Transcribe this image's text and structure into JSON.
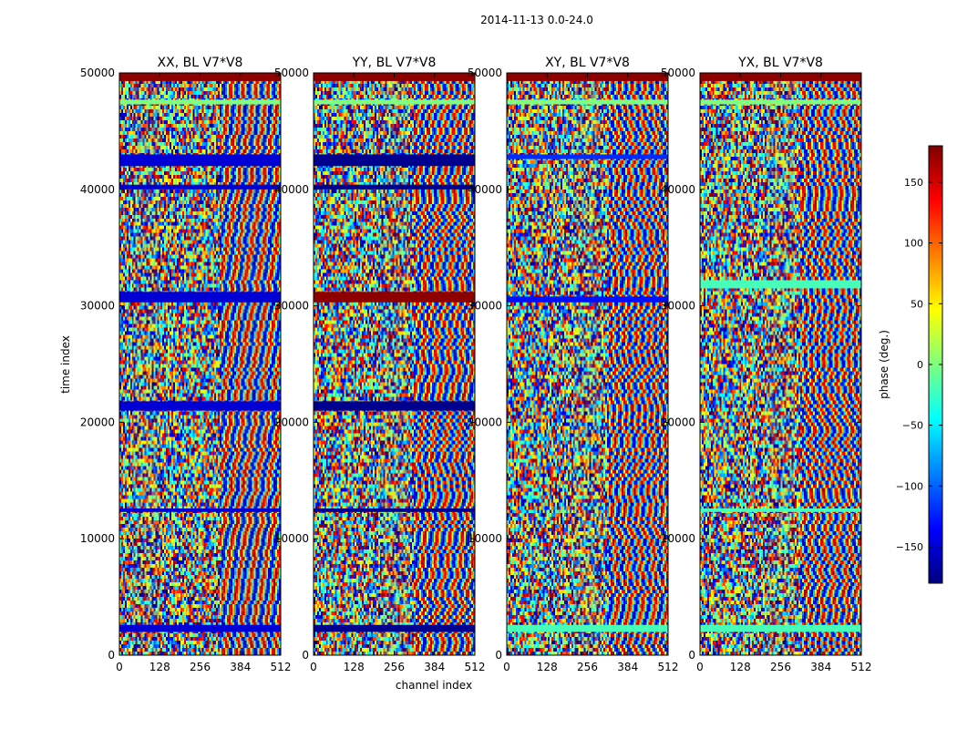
{
  "chart_data": {
    "type": "heatmap",
    "title": "2014-11-13 0.0-24.0",
    "xlabel": "channel index",
    "ylabel": "time index",
    "xlim": [
      0,
      512
    ],
    "ylim": [
      0,
      50000
    ],
    "xticks": [
      0,
      128,
      256,
      384,
      512
    ],
    "yticks": [
      0,
      10000,
      20000,
      30000,
      40000,
      50000
    ],
    "colorbar": {
      "label": "phase (deg.)",
      "range": [
        -180,
        180
      ],
      "ticks": [
        -150,
        -100,
        -50,
        0,
        50,
        100,
        150
      ],
      "tick_labels": [
        "−150",
        "−100",
        "−50",
        "0",
        "50",
        "100",
        "150"
      ],
      "colormap": "jet",
      "colors": [
        "#00007f",
        "#0000ff",
        "#007fff",
        "#00ffff",
        "#7fff7f",
        "#ffff00",
        "#ff7f00",
        "#ff0000",
        "#7f0000"
      ]
    },
    "panels": [
      {
        "title": "XX, BL V7*V8",
        "bands": [
          {
            "t0": 49300,
            "t1": 50000,
            "phase": 175
          },
          {
            "t0": 47300,
            "t1": 47700,
            "phase": 0
          },
          {
            "t0": 42000,
            "t1": 43000,
            "phase": -150
          },
          {
            "t0": 40000,
            "t1": 40400,
            "phase": -150
          },
          {
            "t0": 30300,
            "t1": 31200,
            "phase": -150
          },
          {
            "t0": 21000,
            "t1": 21800,
            "phase": -150
          },
          {
            "t0": 12300,
            "t1": 12600,
            "phase": -150
          },
          {
            "t0": 2000,
            "t1": 2600,
            "phase": -150
          }
        ]
      },
      {
        "title": "YY, BL V7*V8",
        "bands": [
          {
            "t0": 49300,
            "t1": 50000,
            "phase": 175
          },
          {
            "t0": 47300,
            "t1": 47700,
            "phase": 0
          },
          {
            "t0": 42000,
            "t1": 43000,
            "phase": -175
          },
          {
            "t0": 40000,
            "t1": 40400,
            "phase": -175
          },
          {
            "t0": 30300,
            "t1": 31200,
            "phase": 175
          },
          {
            "t0": 21000,
            "t1": 21800,
            "phase": -175
          },
          {
            "t0": 12300,
            "t1": 12600,
            "phase": -175
          },
          {
            "t0": 2000,
            "t1": 2600,
            "phase": -175
          }
        ]
      },
      {
        "title": "XY, BL V7*V8",
        "bands": [
          {
            "t0": 49300,
            "t1": 50000,
            "phase": 175
          },
          {
            "t0": 47300,
            "t1": 47700,
            "phase": 0
          },
          {
            "t0": 42600,
            "t1": 43000,
            "phase": -120
          },
          {
            "t0": 30300,
            "t1": 30800,
            "phase": -130
          },
          {
            "t0": 2000,
            "t1": 2600,
            "phase": -20
          }
        ]
      },
      {
        "title": "YX, BL V7*V8",
        "bands": [
          {
            "t0": 49300,
            "t1": 50000,
            "phase": 175
          },
          {
            "t0": 47300,
            "t1": 47700,
            "phase": 0
          },
          {
            "t0": 31500,
            "t1": 32200,
            "phase": -20
          },
          {
            "t0": 12300,
            "t1": 12600,
            "phase": -20
          },
          {
            "t0": 2000,
            "t1": 2600,
            "phase": -20
          }
        ]
      }
    ]
  }
}
